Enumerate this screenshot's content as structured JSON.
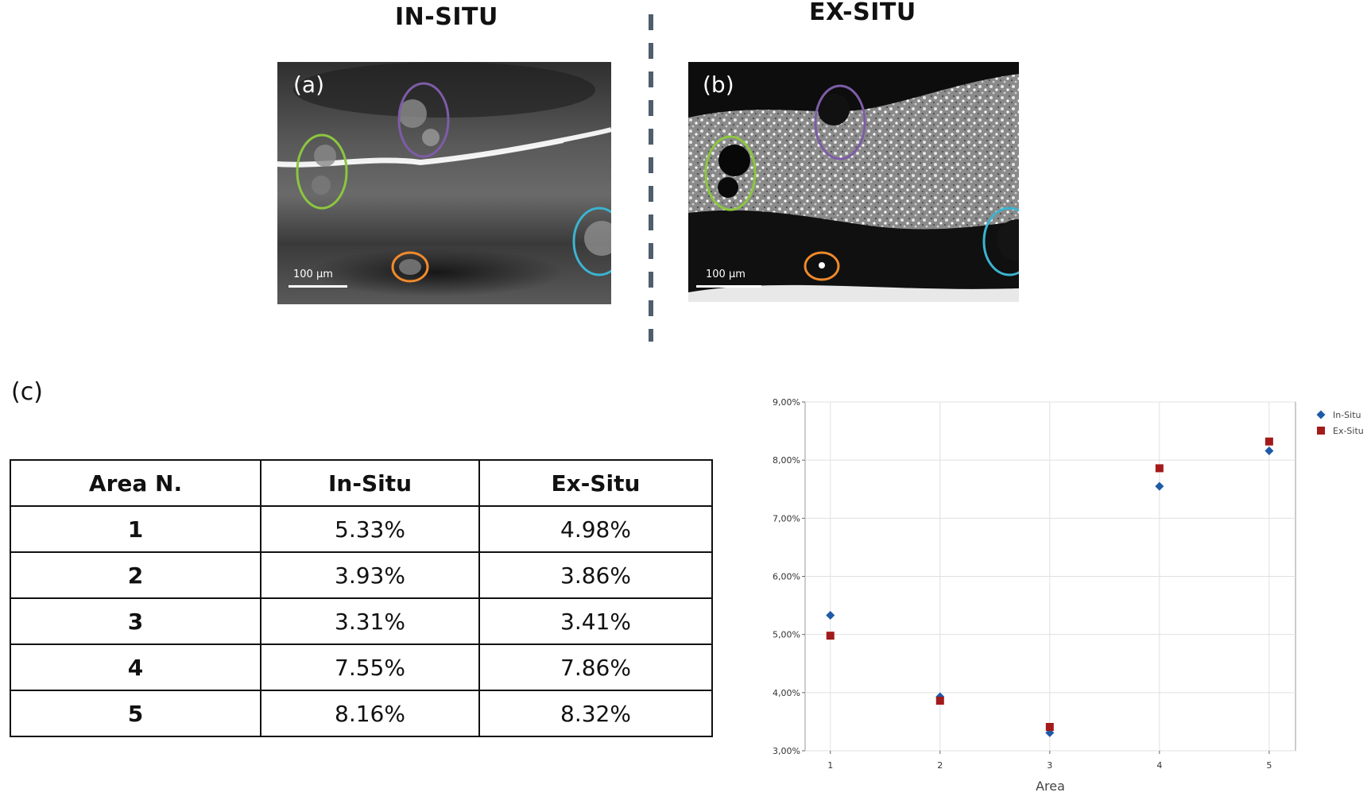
{
  "headings": {
    "in_situ": "IN-SITU",
    "ex_situ": "EX-SITU"
  },
  "panels": {
    "a": {
      "letter": "(a)",
      "scale_label": "100 µm"
    },
    "b": {
      "letter": "(b)",
      "scale_label": "100 µm"
    }
  },
  "panel_c_label": "(c)",
  "marker_colors": {
    "green": "#8cc63f",
    "purple": "#7e5ca8",
    "cyan": "#3bb4d0",
    "orange": "#f08a2c"
  },
  "table": {
    "headers": [
      "Area N.",
      "In-Situ",
      "Ex-Situ"
    ],
    "rows": [
      [
        "1",
        "5.33%",
        "4.98%"
      ],
      [
        "2",
        "3.93%",
        "3.86%"
      ],
      [
        "3",
        "3.31%",
        "3.41%"
      ],
      [
        "4",
        "7.55%",
        "7.86%"
      ],
      [
        "5",
        "8.16%",
        "8.32%"
      ]
    ]
  },
  "chart_data": {
    "type": "scatter",
    "x": [
      1,
      2,
      3,
      4,
      5
    ],
    "xlabel": "Area",
    "ylabel": "",
    "ylim": [
      3.0,
      9.0
    ],
    "yticks": [
      "3,00%",
      "4,00%",
      "5,00%",
      "6,00%",
      "7,00%",
      "8,00%",
      "9,00%"
    ],
    "xticks": [
      "1",
      "2",
      "3",
      "4",
      "5"
    ],
    "grid": true,
    "legend_position": "top-right",
    "series": [
      {
        "name": "In-Situ",
        "values": [
          5.33,
          3.93,
          3.31,
          7.55,
          8.16
        ],
        "color": "#1f5aa6",
        "marker": "diamond"
      },
      {
        "name": "Ex-Situ",
        "values": [
          4.98,
          3.86,
          3.41,
          7.86,
          8.32
        ],
        "color": "#a31a1a",
        "marker": "square"
      }
    ]
  }
}
